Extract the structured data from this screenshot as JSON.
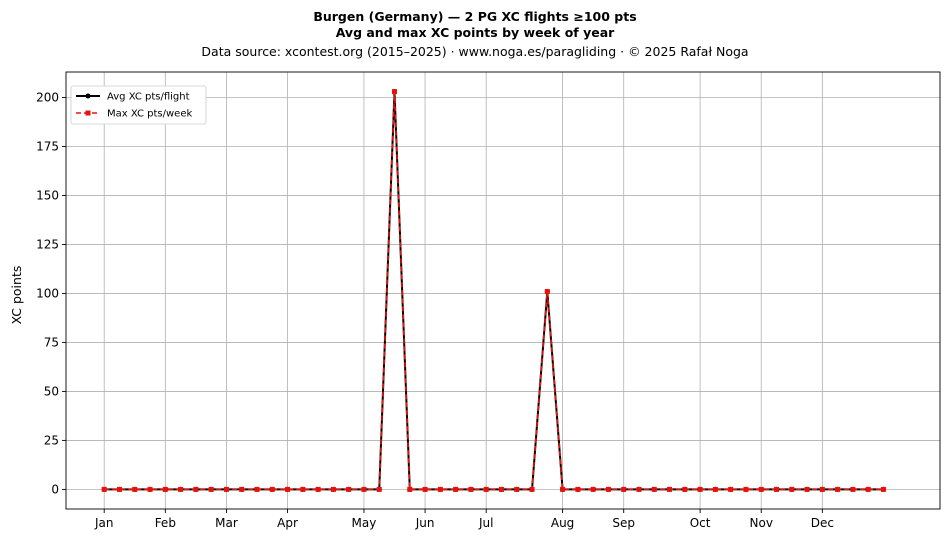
{
  "chart_data": {
    "type": "line",
    "title_lines": [
      "Burgen (Germany)  —  2 PG XC flights ≥100 pts",
      "Avg and max XC points by week of year",
      "Data source: xcontest.org (2015–2025)  ·  www.noga.es/paragliding  ·  © 2025 Rafał Noga"
    ],
    "xlabel": "",
    "ylabel": "XC points",
    "ylim": [
      -10,
      213
    ],
    "xlim": [
      -2.5,
      54.7
    ],
    "yticks": [
      0,
      25,
      50,
      75,
      100,
      125,
      150,
      175,
      200
    ],
    "xticks": [
      {
        "week": 0,
        "label": "Jan"
      },
      {
        "week": 4,
        "label": "Feb"
      },
      {
        "week": 8,
        "label": "Mar"
      },
      {
        "week": 12,
        "label": "Apr"
      },
      {
        "week": 17,
        "label": "May"
      },
      {
        "week": 21,
        "label": "Jun"
      },
      {
        "week": 25,
        "label": "Jul"
      },
      {
        "week": 30,
        "label": "Aug"
      },
      {
        "week": 34,
        "label": "Sep"
      },
      {
        "week": 39,
        "label": "Oct"
      },
      {
        "week": 43,
        "label": "Nov"
      },
      {
        "week": 47,
        "label": "Dec"
      }
    ],
    "grid": true,
    "legend_position": "top-left",
    "x": [
      0,
      1,
      2,
      3,
      4,
      5,
      6,
      7,
      8,
      9,
      10,
      11,
      12,
      13,
      14,
      15,
      16,
      17,
      18,
      19,
      20,
      21,
      22,
      23,
      24,
      25,
      26,
      27,
      28,
      29,
      30,
      31,
      32,
      33,
      34,
      35,
      36,
      37,
      38,
      39,
      40,
      41,
      42,
      43,
      44,
      45,
      46,
      47,
      48,
      49,
      50,
      51
    ],
    "series": [
      {
        "name": "Avg XC pts/flight",
        "color": "#000000",
        "style": "solid",
        "marker": "circle",
        "values": [
          0,
          0,
          0,
          0,
          0,
          0,
          0,
          0,
          0,
          0,
          0,
          0,
          0,
          0,
          0,
          0,
          0,
          0,
          0,
          203,
          0,
          0,
          0,
          0,
          0,
          0,
          0,
          0,
          0,
          101,
          0,
          0,
          0,
          0,
          0,
          0,
          0,
          0,
          0,
          0,
          0,
          0,
          0,
          0,
          0,
          0,
          0,
          0,
          0,
          0,
          0,
          0
        ]
      },
      {
        "name": "Max XC pts/week",
        "color": "#e8120c",
        "style": "dashed",
        "marker": "square",
        "values": [
          0,
          0,
          0,
          0,
          0,
          0,
          0,
          0,
          0,
          0,
          0,
          0,
          0,
          0,
          0,
          0,
          0,
          0,
          0,
          203,
          0,
          0,
          0,
          0,
          0,
          0,
          0,
          0,
          0,
          101,
          0,
          0,
          0,
          0,
          0,
          0,
          0,
          0,
          0,
          0,
          0,
          0,
          0,
          0,
          0,
          0,
          0,
          0,
          0,
          0,
          0,
          0
        ]
      }
    ]
  }
}
